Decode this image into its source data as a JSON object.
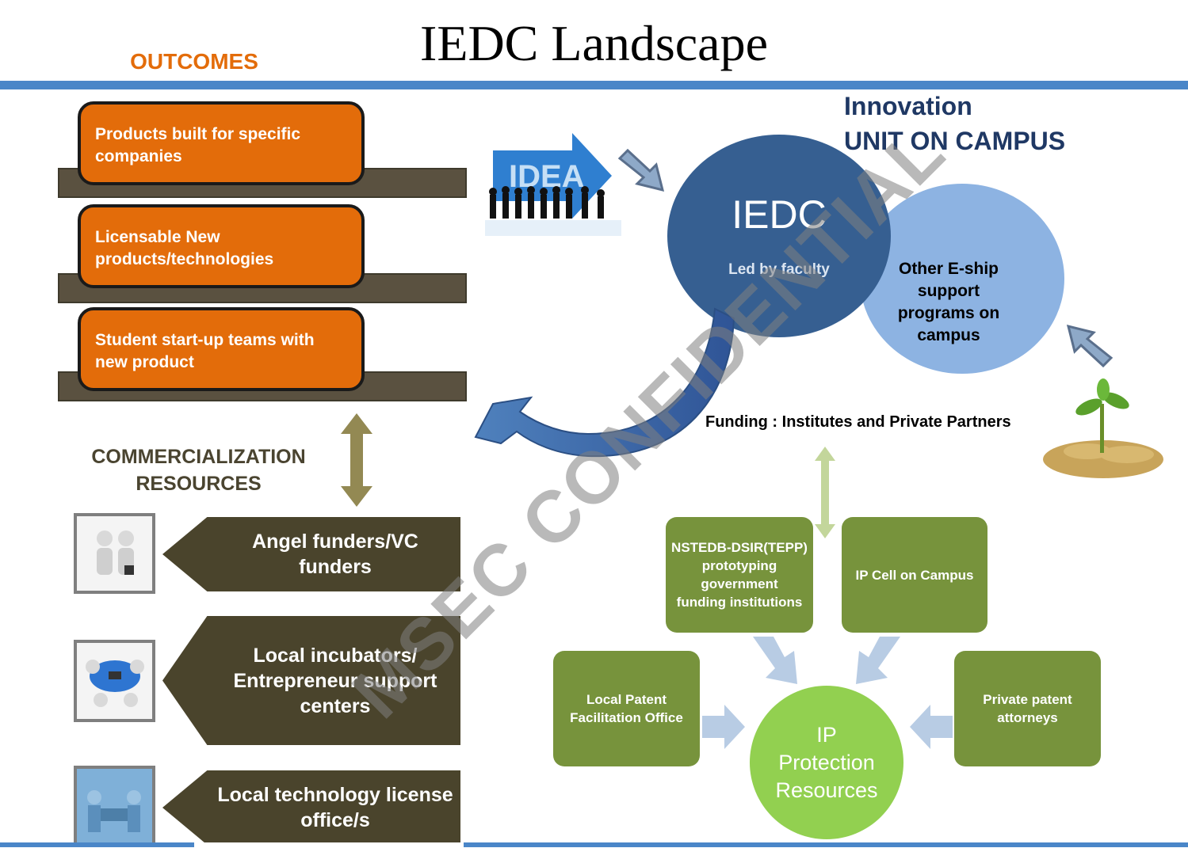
{
  "title": "IEDC Landscape",
  "outcomes": {
    "heading": "OUTCOMES",
    "items": [
      "Products built for specific companies",
      "Licensable  New products/technologies",
      "Student start-up teams with new product"
    ]
  },
  "commercialization": {
    "heading_line1": "COMMERCIALIZATION",
    "heading_line2": "RESOURCES",
    "items": [
      {
        "line1": "Angel funders/VC",
        "line2": "funders",
        "line3": "",
        "icon": "handshake-icon"
      },
      {
        "line1": "Local incubators/",
        "line2": "Entrepreneur support",
        "line3": "centers",
        "icon": "team-puzzle-icon"
      },
      {
        "line1": "Local technology license",
        "line2": "office/s",
        "line3": "",
        "icon": "meeting-icon"
      }
    ]
  },
  "innovation": {
    "heading_line1": "Innovation",
    "heading_line2": "UNIT ON CAMPUS",
    "iedc_title": "IEDC",
    "iedc_sub": "Led by faculty",
    "other_line1": "Other  E-ship",
    "other_line2": "support",
    "other_line3": "programs on",
    "other_line4": "campus",
    "funding": "Funding : Institutes and Private Partners",
    "idea_label": "IDEA"
  },
  "ip": {
    "circle_line1": "IP",
    "circle_line2": "Protection",
    "circle_line3": "Resources",
    "nstedb": [
      "NSTEDB-DSIR(TEPP)",
      "prototyping",
      "government",
      "funding institutions"
    ],
    "ip_cell": "IP Cell on Campus",
    "local_patent": [
      "Local Patent",
      "Facilitation Office"
    ],
    "private_patent": [
      "Private patent",
      "attorneys"
    ]
  },
  "watermark": "MSEC CONFIDENTIAL",
  "colors": {
    "orange": "#e36c0a",
    "olive_dark": "#4a442c",
    "blue_dark": "#365f91",
    "blue_light": "#8db3e2",
    "green": "#77933c",
    "green_light": "#92d050"
  }
}
